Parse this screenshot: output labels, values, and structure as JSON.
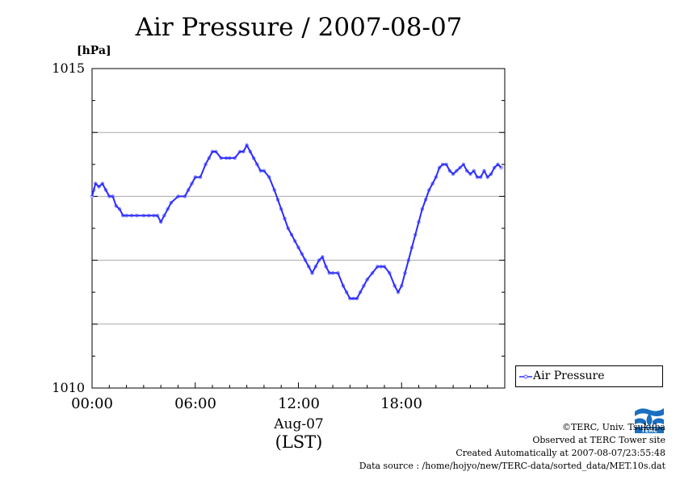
{
  "header": {
    "title": "Air Pressure / 2007-08-07"
  },
  "chart_data": {
    "type": "line",
    "title": "Air Pressure / 2007-08-07",
    "ylabel": "[hPa]",
    "xlabel": "Aug-07",
    "xlabel2": "(LST)",
    "xlim": [
      0,
      24
    ],
    "ylim": [
      1010,
      1015
    ],
    "xticks": [
      0,
      6,
      12,
      18
    ],
    "xtick_labels": [
      "00:00",
      "06:00",
      "12:00",
      "18:00"
    ],
    "yticks_labeled": [
      1010,
      1015
    ],
    "ytick_labels": [
      "1010",
      "1015"
    ],
    "grid": true,
    "legend_position": "bottom-right",
    "series": [
      {
        "name": "Air Pressure",
        "color": "#3333ff",
        "x": [
          0.0,
          0.1,
          0.2,
          0.4,
          0.6,
          0.8,
          1.0,
          1.2,
          1.4,
          1.6,
          1.8,
          2.0,
          2.3,
          2.6,
          3.0,
          3.3,
          3.6,
          3.8,
          4.0,
          4.2,
          4.4,
          4.6,
          5.0,
          5.4,
          5.6,
          5.8,
          6.0,
          6.3,
          6.6,
          6.8,
          7.0,
          7.2,
          7.5,
          7.8,
          8.0,
          8.3,
          8.6,
          8.8,
          9.0,
          9.2,
          9.4,
          9.6,
          9.8,
          10.0,
          10.3,
          10.6,
          10.8,
          11.0,
          11.2,
          11.4,
          11.6,
          11.8,
          12.0,
          12.2,
          12.4,
          12.6,
          12.8,
          13.0,
          13.2,
          13.4,
          13.6,
          13.8,
          14.0,
          14.3,
          14.6,
          14.8,
          15.0,
          15.2,
          15.4,
          15.6,
          15.8,
          16.0,
          16.3,
          16.6,
          16.8,
          17.0,
          17.3,
          17.6,
          17.8,
          18.0,
          18.2,
          18.4,
          18.6,
          18.8,
          19.0,
          19.2,
          19.4,
          19.6,
          19.8,
          20.0,
          20.2,
          20.4,
          20.6,
          20.8,
          21.0,
          21.2,
          21.4,
          21.6,
          21.8,
          22.0,
          22.2,
          22.4,
          22.6,
          22.8,
          23.0,
          23.2,
          23.4,
          23.6,
          23.8
        ],
        "y": [
          1013.0,
          1013.1,
          1013.2,
          1013.15,
          1013.2,
          1013.1,
          1013.0,
          1013.0,
          1012.85,
          1012.8,
          1012.7,
          1012.7,
          1012.7,
          1012.7,
          1012.7,
          1012.7,
          1012.7,
          1012.7,
          1012.6,
          1012.7,
          1012.8,
          1012.9,
          1013.0,
          1013.0,
          1013.1,
          1013.2,
          1013.3,
          1013.3,
          1013.5,
          1013.6,
          1013.7,
          1013.7,
          1013.6,
          1013.6,
          1013.6,
          1013.6,
          1013.7,
          1013.7,
          1013.8,
          1013.7,
          1013.6,
          1013.5,
          1013.4,
          1013.4,
          1013.3,
          1013.1,
          1012.95,
          1012.8,
          1012.65,
          1012.5,
          1012.4,
          1012.3,
          1012.2,
          1012.1,
          1012.0,
          1011.9,
          1011.8,
          1011.9,
          1012.0,
          1012.05,
          1011.9,
          1011.8,
          1011.8,
          1011.8,
          1011.6,
          1011.5,
          1011.4,
          1011.4,
          1011.4,
          1011.5,
          1011.6,
          1011.7,
          1011.8,
          1011.9,
          1011.9,
          1011.9,
          1011.8,
          1011.6,
          1011.5,
          1011.6,
          1011.8,
          1012.0,
          1012.2,
          1012.4,
          1012.6,
          1012.8,
          1012.95,
          1013.1,
          1013.2,
          1013.3,
          1013.45,
          1013.5,
          1013.5,
          1013.4,
          1013.35,
          1013.4,
          1013.45,
          1013.5,
          1013.4,
          1013.35,
          1013.4,
          1013.3,
          1013.3,
          1013.4,
          1013.3,
          1013.35,
          1013.45,
          1013.5,
          1013.45
        ]
      }
    ]
  },
  "legend": {
    "label": "Air Pressure"
  },
  "credits": {
    "line1": "©TERC, Univ. Tsukuba",
    "line2": "Observed at TERC Tower site",
    "line3": "Created Automatically at 2007-08-07/23:55:48",
    "line4": "Data source : /home/hojyo/new/TERC-data/sorted_data/MET.10s.dat"
  },
  "logo": {
    "text": "TERC",
    "color": "#1a6fc0"
  }
}
